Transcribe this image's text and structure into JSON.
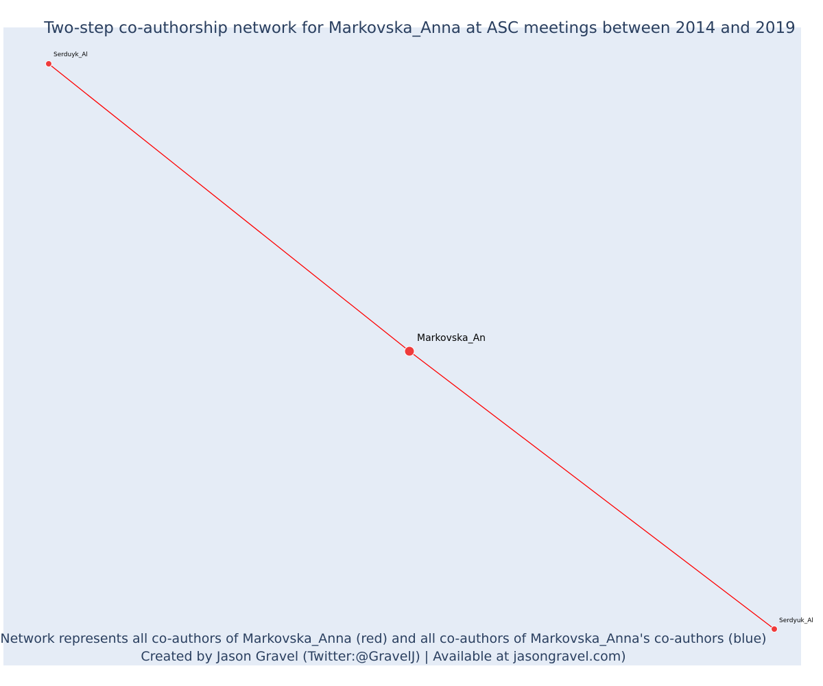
{
  "title": "Two-step co-authorship network for Markovska_Anna at ASC meetings between 2014 and 2019",
  "caption": {
    "line1": "Network represents all co-authors of Markovska_Anna (red) and all co-authors of Markovska_Anna's co-authors (blue)",
    "line2": "Created by Jason Gravel (Twitter:@GravelJ) | Available at jasongravel.com)"
  },
  "colors": {
    "background": "#e5ecf6",
    "edge": "#ff0000",
    "node": "#ef3b3b",
    "node_outline": "#ffffff",
    "text": "#2a3f5f"
  },
  "nodes": [
    {
      "id": "Serduyk_Al",
      "label": "Serduyk_Al",
      "role": "co-author"
    },
    {
      "id": "Markovska_An",
      "label": "Markovska_An",
      "role": "focal"
    },
    {
      "id": "Serdyuk_Al",
      "label": "Serdyuk_Al",
      "role": "co-author"
    }
  ],
  "edges": [
    {
      "source": "Serduyk_Al",
      "target": "Markovska_An"
    },
    {
      "source": "Markovska_An",
      "target": "Serdyuk_Al"
    }
  ]
}
